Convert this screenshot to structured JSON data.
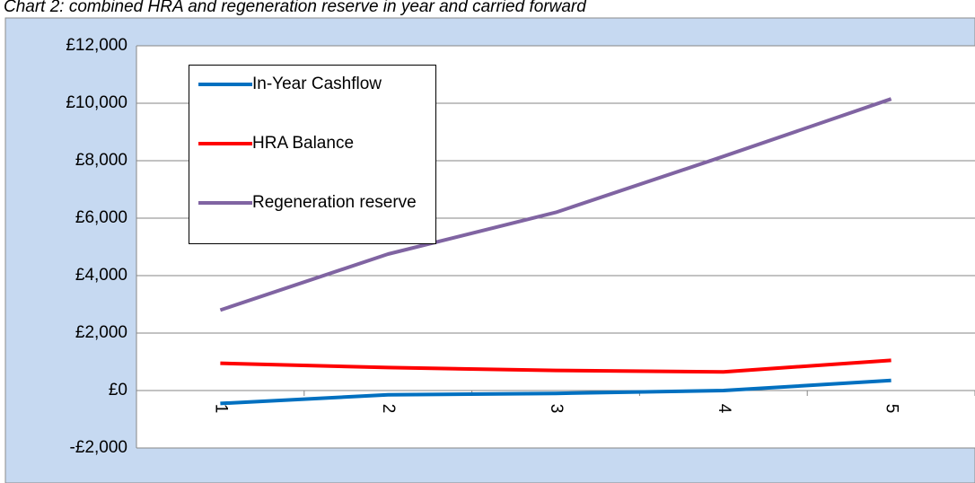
{
  "chart_data": {
    "type": "line",
    "title": "Chart 2: combined HRA and regeneration reserve in year and carried forward",
    "categories": [
      "1",
      "2",
      "3",
      "4",
      "5"
    ],
    "series": [
      {
        "name": "In-Year Cashflow",
        "color": "#0070c0",
        "values": [
          -450,
          -150,
          -100,
          0,
          350
        ]
      },
      {
        "name": "HRA Balance",
        "color": "#ff0000",
        "values": [
          950,
          800,
          700,
          650,
          1050
        ]
      },
      {
        "name": "Regeneration reserve",
        "color": "#8064a2",
        "values": [
          2800,
          4750,
          6200,
          8150,
          10150
        ]
      }
    ],
    "ylim": [
      -2000,
      12000
    ],
    "yticks": [
      {
        "value": -2000,
        "label": "-£2,000"
      },
      {
        "value": 0,
        "label": "£0"
      },
      {
        "value": 2000,
        "label": "£2,000"
      },
      {
        "value": 4000,
        "label": "£4,000"
      },
      {
        "value": 6000,
        "label": "£6,000"
      },
      {
        "value": 8000,
        "label": "£8,000"
      },
      {
        "value": 10000,
        "label": "£10,000"
      },
      {
        "value": 12000,
        "label": "£12,000"
      }
    ],
    "grid": true,
    "legend": "upper left"
  }
}
